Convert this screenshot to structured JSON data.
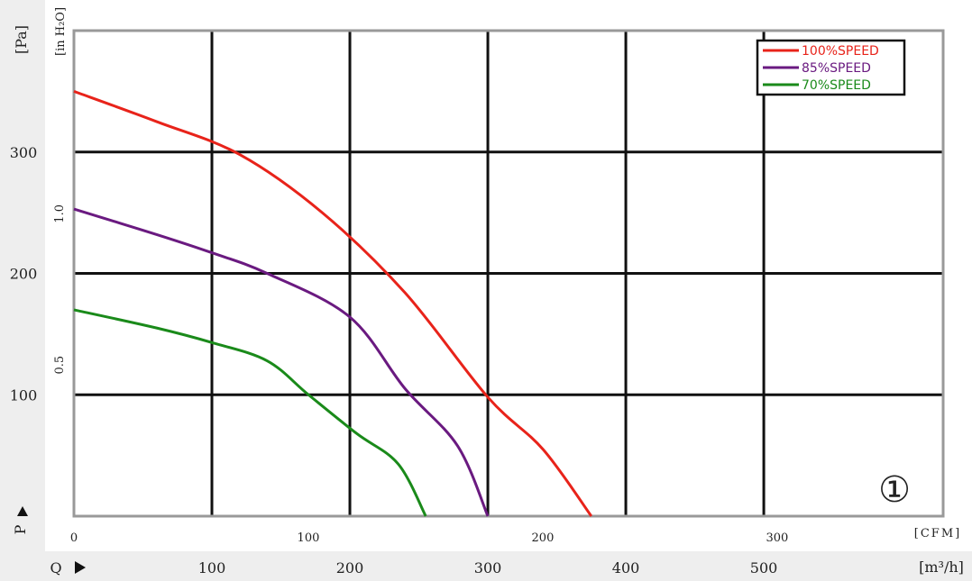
{
  "chart_data": {
    "type": "line",
    "title": "",
    "badge": "①",
    "y_unit_left": "[Pa]",
    "y_unit_inner": "[in H₂O]",
    "x_unit_cfm": "[CFM]",
    "x_unit_m3h": "[m³/h]",
    "y_axis_label": "P",
    "x_axis_label": "Q",
    "y_pa_ticks": [
      100,
      200,
      300
    ],
    "y_inh2o_ticks": [
      "0.5",
      "1.0"
    ],
    "x_cfm_ticks": [
      0,
      100,
      200,
      300
    ],
    "x_m3h_ticks": [
      100,
      200,
      300,
      400,
      500
    ],
    "x_m3h_range": [
      0,
      630
    ],
    "y_pa_range": [
      0,
      400
    ],
    "grid": true,
    "legend_position": "top-right",
    "series": [
      {
        "name": "100%SPEED",
        "color": "#e8231a",
        "points": [
          [
            0,
            350
          ],
          [
            60,
            325
          ],
          [
            120,
            298
          ],
          [
            180,
            250
          ],
          [
            240,
            184
          ],
          [
            300,
            98
          ],
          [
            340,
            55
          ],
          [
            375,
            0
          ]
        ]
      },
      {
        "name": "85%SPEED",
        "color": "#6a1a80",
        "points": [
          [
            0,
            253
          ],
          [
            60,
            232
          ],
          [
            100,
            217
          ],
          [
            140,
            200
          ],
          [
            200,
            164
          ],
          [
            240,
            105
          ],
          [
            278,
            58
          ],
          [
            300,
            0
          ]
        ]
      },
      {
        "name": "70%SPEED",
        "color": "#1a8a1a",
        "points": [
          [
            0,
            170
          ],
          [
            60,
            155
          ],
          [
            100,
            143
          ],
          [
            140,
            128
          ],
          [
            170,
            100
          ],
          [
            205,
            68
          ],
          [
            235,
            43
          ],
          [
            255,
            0
          ]
        ]
      }
    ]
  }
}
